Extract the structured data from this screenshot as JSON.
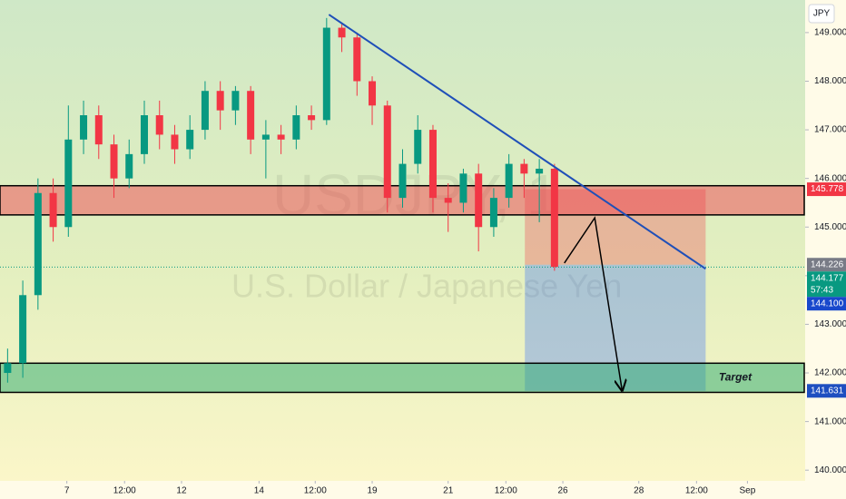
{
  "chart_data": {
    "type": "candlestick",
    "title": "USDJPY, 1",
    "subtitle": "U.S. Dollar / Japanese Yen",
    "currency": "JPY",
    "x": [
      1,
      3,
      5,
      7,
      9,
      11,
      13,
      15,
      17,
      19,
      21,
      23,
      25,
      27,
      29,
      31,
      33,
      35,
      37,
      39,
      41,
      43,
      45,
      47,
      49,
      51,
      53,
      55,
      57,
      59,
      61,
      63,
      65,
      67,
      69,
      71,
      73
    ],
    "open": [
      142.0,
      142.2,
      143.6,
      145.7,
      145.0,
      146.8,
      147.3,
      146.7,
      146.0,
      146.5,
      147.3,
      146.9,
      146.6,
      147.0,
      147.8,
      147.4,
      147.8,
      146.8,
      146.9,
      146.8,
      147.3,
      147.2,
      149.1,
      148.9,
      148.0,
      147.5,
      145.6,
      146.3,
      147.0,
      145.6,
      145.5,
      146.1,
      145.0,
      145.6,
      146.3,
      146.1,
      146.2
    ],
    "high": [
      142.5,
      143.9,
      146.0,
      146.0,
      147.5,
      147.6,
      147.5,
      146.9,
      146.8,
      147.6,
      147.6,
      147.1,
      147.3,
      148.0,
      148.0,
      147.9,
      147.9,
      147.2,
      147.1,
      147.5,
      147.5,
      149.3,
      149.2,
      149.0,
      148.1,
      147.6,
      146.6,
      147.3,
      147.1,
      145.9,
      146.2,
      146.3,
      145.8,
      146.5,
      146.4,
      146.4,
      146.3
    ],
    "low": [
      141.8,
      141.9,
      143.3,
      144.7,
      144.8,
      146.5,
      146.4,
      145.6,
      145.8,
      146.3,
      146.6,
      146.3,
      146.4,
      146.8,
      147.0,
      147.1,
      146.5,
      146.0,
      146.5,
      146.6,
      147.0,
      147.1,
      148.6,
      147.7,
      147.1,
      145.3,
      145.4,
      146.1,
      145.3,
      144.9,
      145.3,
      144.5,
      144.8,
      145.4,
      145.6,
      145.1,
      144.1
    ],
    "close": [
      142.2,
      143.6,
      145.7,
      145.0,
      146.8,
      147.3,
      146.7,
      146.0,
      146.5,
      147.3,
      146.9,
      146.6,
      147.0,
      147.8,
      147.4,
      147.8,
      146.8,
      146.9,
      146.8,
      147.3,
      147.2,
      149.1,
      148.9,
      148.0,
      147.5,
      145.6,
      146.3,
      147.0,
      145.6,
      145.5,
      146.1,
      145.0,
      145.6,
      146.3,
      146.1,
      146.2,
      144.18
    ],
    "up_color": "#089981",
    "down_color": "#f23645",
    "xlim": [
      0,
      106
    ],
    "ylim": [
      139.78,
      149.67
    ],
    "xticks": [
      {
        "value": 8.8,
        "label": "7"
      },
      {
        "value": 16.4,
        "label": "12:00"
      },
      {
        "value": 23.9,
        "label": "12"
      },
      {
        "value": 34.1,
        "label": "14"
      },
      {
        "value": 41.5,
        "label": "12:00"
      },
      {
        "value": 49.0,
        "label": "19"
      },
      {
        "value": 59.0,
        "label": "21"
      },
      {
        "value": 66.6,
        "label": "12:00"
      },
      {
        "value": 74.1,
        "label": "26"
      },
      {
        "value": 84.1,
        "label": "28"
      },
      {
        "value": 91.7,
        "label": "12:00"
      },
      {
        "value": 98.4,
        "label": "Sep"
      }
    ],
    "yticks": [
      {
        "value": 149,
        "label": "149.000"
      },
      {
        "value": 148,
        "label": "148.000"
      },
      {
        "value": 147,
        "label": "147.000"
      },
      {
        "value": 146,
        "label": "146.000"
      },
      {
        "value": 145,
        "label": "145.000"
      },
      {
        "value": 144,
        "label": "144.000"
      },
      {
        "value": 143,
        "label": "143.000"
      },
      {
        "value": 142,
        "label": "142.000"
      },
      {
        "value": 141,
        "label": "141.000"
      },
      {
        "value": 140,
        "label": "140.000"
      }
    ],
    "grid": false,
    "zones": [
      {
        "low": 145.25,
        "high": 145.85,
        "color": "rgba(242,54,69,0.45)"
      },
      {
        "low": 141.6,
        "high": 142.2,
        "color": "rgba(40,170,110,0.5)",
        "label": "Target"
      }
    ],
    "position": {
      "x_start": 69.1,
      "x_end": 92.9,
      "entry": 144.226,
      "stop": 145.778,
      "target": 141.631,
      "stop_color": "rgba(242,54,69,0.3)",
      "target_color": "rgba(41,98,255,0.3)"
    },
    "trendline": {
      "x": [
        43.3,
        92.9
      ],
      "y": [
        149.37,
        144.14
      ],
      "color": "#1f4fb8"
    },
    "arrow": {
      "x": [
        74.3,
        78.3,
        81.9
      ],
      "y": [
        144.26,
        145.19,
        141.64
      ],
      "color": "#000000"
    },
    "current_price": {
      "value": 144.177,
      "color": "#089981"
    },
    "price_labels": [
      {
        "value": 145.778,
        "label": "145.778",
        "color": "#f23645"
      },
      {
        "value": 144.226,
        "label": "144.226",
        "color": "#787b86"
      },
      {
        "value": 144.177,
        "label": "144.177",
        "countdown": "57:43",
        "color": "#089981"
      },
      {
        "value": 144.1,
        "label": "144.100",
        "color": "#1848cc"
      },
      {
        "value": 141.631,
        "label": "141.631",
        "color": "#1e4fc0"
      }
    ]
  }
}
